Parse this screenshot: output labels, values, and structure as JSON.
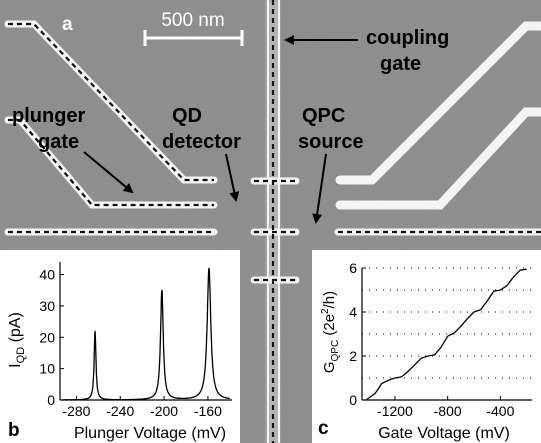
{
  "figure": {
    "panel_labels": {
      "a": "a",
      "b": "b",
      "c": "c"
    },
    "scalebar": "500 nm",
    "annotations": {
      "coupling_gate": [
        "coupling",
        "gate"
      ],
      "plunger_gate": [
        "plunger",
        "gate"
      ],
      "qd_detector": [
        "QD",
        "detector"
      ],
      "qpc_source": [
        "QPC",
        "source"
      ]
    },
    "colors": {
      "sem_background": "#8a8a8a",
      "gate_metal": "#f2f2f2",
      "dash_line": "#111111"
    }
  },
  "chart_data": [
    {
      "type": "line",
      "panel": "b",
      "xlabel": "Plunger Voltage (mV)",
      "ylabel": "I",
      "ylabel_sub": "QD",
      "ylabel_suffix": " (pA)",
      "xlim": [
        -295,
        -138
      ],
      "ylim": [
        0,
        44
      ],
      "xticks": [
        -280,
        -240,
        -200,
        -160
      ],
      "xtick_labels": [
        "-280",
        "-240",
        "-200",
        "-160"
      ],
      "yticks": [
        0,
        10,
        20,
        30,
        40
      ],
      "ytick_labels": [
        "0",
        "10",
        "20",
        "30",
        "40"
      ],
      "peaks": [
        {
          "x": -263,
          "height": 22,
          "width": 1.0
        },
        {
          "x": -202,
          "height": 35,
          "width": 1.5
        },
        {
          "x": -159,
          "height": 42,
          "width": 2.0
        }
      ]
    },
    {
      "type": "line",
      "panel": "c",
      "xlabel": "Gate Voltage (mV)",
      "ylabel": "G",
      "ylabel_sub": "QPC",
      "ylabel_suffix": " (2e",
      "ylabel_sup": "2",
      "ylabel_tail": "/h)",
      "xlim": [
        -1450,
        -160
      ],
      "ylim": [
        0,
        6
      ],
      "xticks": [
        -1200,
        -800,
        -400
      ],
      "xtick_labels": [
        "-1200",
        "-800",
        "-400"
      ],
      "yticks": [
        0,
        2,
        4,
        6
      ],
      "ytick_labels": [
        "0",
        "2",
        "4",
        "6"
      ],
      "grid_y": [
        1,
        2,
        3,
        4,
        5,
        6
      ],
      "x": [
        -1420,
        -1350,
        -1300,
        -1250,
        -1200,
        -1150,
        -1100,
        -1050,
        -1000,
        -950,
        -900,
        -850,
        -800,
        -750,
        -700,
        -650,
        -600,
        -550,
        -500,
        -450,
        -400,
        -350,
        -300,
        -250,
        -200
      ],
      "y": [
        0.0,
        0.3,
        0.75,
        0.9,
        1.0,
        1.05,
        1.3,
        1.6,
        1.9,
        2.0,
        2.05,
        2.4,
        2.9,
        3.05,
        3.35,
        3.7,
        4.0,
        4.1,
        4.5,
        4.95,
        5.0,
        5.2,
        5.6,
        5.9,
        5.95
      ]
    }
  ]
}
